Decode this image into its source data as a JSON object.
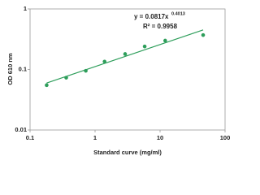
{
  "chart_data": {
    "type": "scatter",
    "x_label": "Standard curve (mg/ml)",
    "y_label": "OD 610 nm",
    "equation": "y = 0.0817x",
    "equation_exponent": "0.4013",
    "r_squared": "R² = 0.9958",
    "x_scale": "log",
    "y_scale": "log",
    "xlim": [
      0.1,
      100
    ],
    "xticks": [
      0.1,
      1,
      10,
      100
    ],
    "ylim": [
      0.01,
      1
    ],
    "yticks": [
      0.01,
      0.1,
      1
    ],
    "color": "#2e9e5b",
    "trendline": true,
    "x": [
      0.18,
      0.36,
      0.72,
      1.4,
      2.9,
      5.8,
      12,
      46
    ],
    "values": [
      0.055,
      0.073,
      0.095,
      0.135,
      0.18,
      0.24,
      0.3,
      0.37
    ]
  }
}
